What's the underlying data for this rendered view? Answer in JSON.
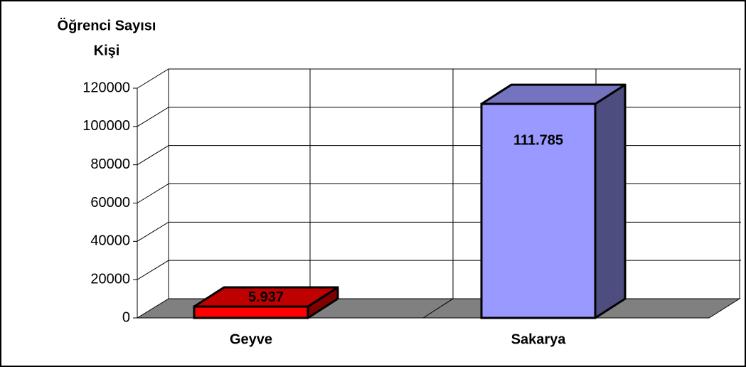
{
  "chart_data": {
    "type": "bar",
    "y_label": "Öğrenci Sayısı",
    "y_unit": "Kişi",
    "categories": [
      "Geyve",
      "Sakarya"
    ],
    "values": [
      5937,
      111785
    ],
    "value_labels": [
      "5.937",
      "111.785"
    ],
    "colors": [
      "#ff0000",
      "#9999ff"
    ],
    "ylim": [
      0,
      120000
    ],
    "yticks": [
      0,
      20000,
      40000,
      60000,
      80000,
      100000,
      120000
    ],
    "grid": true
  }
}
